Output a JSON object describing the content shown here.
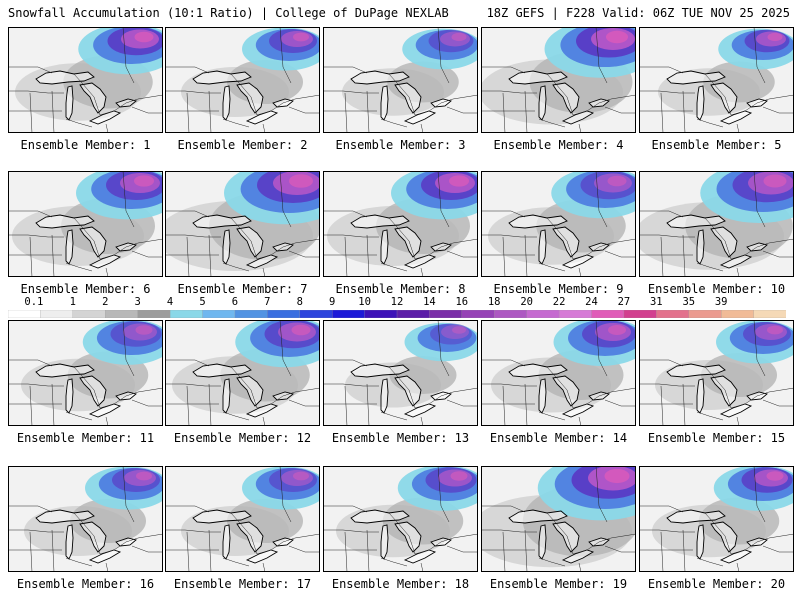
{
  "header": {
    "title_left": "Snowfall Accumulation (10:1 Ratio) | College of DuPage NEXLAB",
    "title_right": "18Z GEFS | F228 Valid: 06Z TUE NOV 25 2025"
  },
  "colorbar": {
    "labels": [
      "0.1",
      "1",
      "2",
      "3",
      "4",
      "5",
      "6",
      "7",
      "8",
      "9",
      "10",
      "12",
      "14",
      "16",
      "18",
      "20",
      "22",
      "24",
      "27",
      "31",
      "35",
      "39"
    ],
    "colors": [
      "#ffffff",
      "#eeeeee",
      "#d4d4d4",
      "#b8b8b8",
      "#9c9c9c",
      "#8ad8e8",
      "#6fb7ef",
      "#5193e3",
      "#3a6fe0",
      "#2d44dd",
      "#1d1ad8",
      "#3d12b8",
      "#5c1ea8",
      "#7a2ea8",
      "#9642b6",
      "#ad58c2",
      "#c56ad0",
      "#d67bd6",
      "#e05cb8",
      "#d23f8f",
      "#e3718c",
      "#eb9a8f",
      "#f1bb97",
      "#f5d9b6"
    ]
  },
  "members": [
    {
      "caption": "Ensemble Member: 1",
      "intensity": 0.85,
      "spread": 0.55
    },
    {
      "caption": "Ensemble Member: 2",
      "intensity": 0.7,
      "spread": 0.4
    },
    {
      "caption": "Ensemble Member: 3",
      "intensity": 0.6,
      "spread": 0.35
    },
    {
      "caption": "Ensemble Member: 4",
      "intensity": 0.9,
      "spread": 0.7
    },
    {
      "caption": "Ensemble Member: 5",
      "intensity": 0.75,
      "spread": 0.35
    },
    {
      "caption": "Ensemble Member: 6",
      "intensity": 0.8,
      "spread": 0.6
    },
    {
      "caption": "Ensemble Member: 7",
      "intensity": 0.85,
      "spread": 0.8
    },
    {
      "caption": "Ensemble Member: 8",
      "intensity": 0.85,
      "spread": 0.6
    },
    {
      "caption": "Ensemble Member: 9",
      "intensity": 0.65,
      "spread": 0.55
    },
    {
      "caption": "Ensemble Member: 10",
      "intensity": 0.8,
      "spread": 0.75
    },
    {
      "caption": "Ensemble Member: 11",
      "intensity": 0.6,
      "spread": 0.45
    },
    {
      "caption": "Ensemble Member: 12",
      "intensity": 0.75,
      "spread": 0.55
    },
    {
      "caption": "Ensemble Member: 13",
      "intensity": 0.5,
      "spread": 0.3
    },
    {
      "caption": "Ensemble Member: 14",
      "intensity": 0.75,
      "spread": 0.5
    },
    {
      "caption": "Ensemble Member: 15",
      "intensity": 0.65,
      "spread": 0.4
    },
    {
      "caption": "Ensemble Member: 16",
      "intensity": 0.65,
      "spread": 0.4
    },
    {
      "caption": "Ensemble Member: 17",
      "intensity": 0.6,
      "spread": 0.4
    },
    {
      "caption": "Ensemble Member: 18",
      "intensity": 0.7,
      "spread": 0.45
    },
    {
      "caption": "Ensemble Member: 19",
      "intensity": 0.9,
      "spread": 0.85
    },
    {
      "caption": "Ensemble Member: 20",
      "intensity": 0.8,
      "spread": 0.45
    }
  ]
}
